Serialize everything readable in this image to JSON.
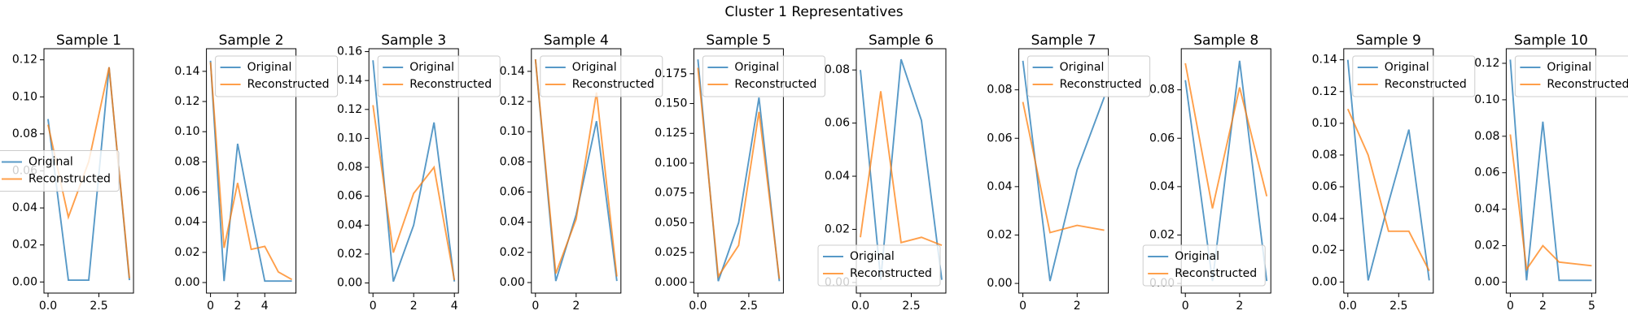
{
  "title": "Cluster 1 Representatives",
  "chart_data": [
    {
      "type": "line",
      "title": "Sample 1",
      "x": [
        0,
        1,
        2,
        3,
        4
      ],
      "xlim": [
        -0.2,
        4.2
      ],
      "xticks": [
        {
          "value": 0,
          "label": "0.0"
        },
        2.5
      ],
      "ylim": [
        -0.006,
        0.126
      ],
      "yticks": [
        {
          "value": 0,
          "label": "0.00"
        },
        0.02,
        0.04,
        0.06,
        0.08,
        {
          "value": 0.1,
          "label": "0.10"
        },
        0.12
      ],
      "legend": "center left",
      "series": [
        {
          "name": "Original",
          "color": "#1f77b4",
          "values": [
            0.088,
            0.001,
            0.001,
            0.116,
            0.001
          ]
        },
        {
          "name": "Reconstructed",
          "color": "#ff7f0e",
          "values": [
            0.085,
            0.035,
            0.065,
            0.116,
            0.002
          ]
        }
      ]
    },
    {
      "type": "line",
      "title": "Sample 2",
      "x": [
        0,
        1,
        2,
        3,
        4,
        5,
        6
      ],
      "xlim": [
        -0.3,
        6.3
      ],
      "xticks": [
        0,
        2,
        4
      ],
      "ylim": [
        -0.007,
        0.155
      ],
      "yticks": [
        {
          "value": 0,
          "label": "0.00"
        },
        0.02,
        0.04,
        0.06,
        0.08,
        {
          "value": 0.1,
          "label": "0.10"
        },
        0.12,
        0.14
      ],
      "legend": "upper right",
      "series": [
        {
          "name": "Original",
          "color": "#1f77b4",
          "values": [
            0.147,
            0.001,
            0.092,
            0.045,
            0.001,
            0.001,
            0.001
          ]
        },
        {
          "name": "Reconstructed",
          "color": "#ff7f0e",
          "values": [
            0.146,
            0.023,
            0.066,
            0.022,
            0.024,
            0.007,
            0.002
          ]
        }
      ]
    },
    {
      "type": "line",
      "title": "Sample 3",
      "x": [
        0,
        1,
        2,
        3,
        4
      ],
      "xlim": [
        -0.2,
        4.2
      ],
      "xticks": [
        0,
        2,
        4
      ],
      "ylim": [
        -0.007,
        0.162
      ],
      "yticks": [
        {
          "value": 0,
          "label": "0.00"
        },
        0.02,
        0.04,
        0.06,
        0.08,
        {
          "value": 0.1,
          "label": "0.10"
        },
        0.12,
        0.14,
        0.16
      ],
      "legend": "upper right",
      "series": [
        {
          "name": "Original",
          "color": "#1f77b4",
          "values": [
            0.154,
            0.001,
            0.04,
            0.111,
            0.001
          ]
        },
        {
          "name": "Reconstructed",
          "color": "#ff7f0e",
          "values": [
            0.123,
            0.021,
            0.062,
            0.08,
            0.002
          ]
        }
      ]
    },
    {
      "type": "line",
      "title": "Sample 4",
      "x": [
        0,
        1,
        2,
        3,
        4
      ],
      "xlim": [
        -0.2,
        4.2
      ],
      "xticks": [
        0,
        2
      ],
      "ylim": [
        -0.007,
        0.155
      ],
      "yticks": [
        {
          "value": 0,
          "label": "0.00"
        },
        0.02,
        0.04,
        0.06,
        0.08,
        {
          "value": 0.1,
          "label": "0.10"
        },
        0.12,
        0.14
      ],
      "legend": "upper right",
      "series": [
        {
          "name": "Original",
          "color": "#1f77b4",
          "values": [
            0.148,
            0.001,
            0.045,
            0.107,
            0.001
          ]
        },
        {
          "name": "Reconstructed",
          "color": "#ff7f0e",
          "values": [
            0.148,
            0.006,
            0.042,
            0.126,
            0.004
          ]
        }
      ]
    },
    {
      "type": "line",
      "title": "Sample 5",
      "x": [
        0,
        1,
        2,
        3,
        4
      ],
      "xlim": [
        -0.2,
        4.2
      ],
      "xticks": [
        {
          "value": 0,
          "label": "0.0"
        },
        2.5
      ],
      "ylim": [
        -0.009,
        0.196
      ],
      "yticks": [
        {
          "value": 0,
          "label": "0.000"
        },
        0.025,
        {
          "value": 0.05,
          "label": "0.050"
        },
        0.075,
        {
          "value": 0.1,
          "label": "0.100"
        },
        0.125,
        {
          "value": 0.15,
          "label": "0.150"
        },
        0.175
      ],
      "legend": "upper right",
      "series": [
        {
          "name": "Original",
          "color": "#1f77b4",
          "values": [
            0.187,
            0.001,
            0.05,
            0.155,
            0.001
          ]
        },
        {
          "name": "Reconstructed",
          "color": "#ff7f0e",
          "values": [
            0.18,
            0.005,
            0.031,
            0.143,
            0.003
          ]
        }
      ]
    },
    {
      "type": "line",
      "title": "Sample 6",
      "x": [
        0,
        1,
        2,
        3,
        4
      ],
      "xlim": [
        -0.2,
        4.2
      ],
      "xticks": [
        {
          "value": 0,
          "label": "0.0"
        },
        2.5
      ],
      "ylim": [
        -0.004,
        0.088
      ],
      "yticks": [
        {
          "value": 0,
          "label": "0.00"
        },
        0.02,
        0.04,
        0.06,
        0.08
      ],
      "legend": "lower left",
      "series": [
        {
          "name": "Original",
          "color": "#1f77b4",
          "values": [
            0.08,
            0.001,
            0.084,
            0.061,
            0.001
          ]
        },
        {
          "name": "Reconstructed",
          "color": "#ff7f0e",
          "values": [
            0.017,
            0.072,
            0.015,
            0.017,
            0.014
          ]
        }
      ]
    },
    {
      "type": "line",
      "title": "Sample 7",
      "x": [
        0,
        1,
        2,
        3
      ],
      "xlim": [
        -0.15,
        3.15
      ],
      "xticks": [
        0,
        2
      ],
      "ylim": [
        -0.004,
        0.097
      ],
      "yticks": [
        {
          "value": 0,
          "label": "0.00"
        },
        0.02,
        0.04,
        0.06,
        0.08
      ],
      "legend": "upper right",
      "series": [
        {
          "name": "Original",
          "color": "#1f77b4",
          "values": [
            0.092,
            0.001,
            0.047,
            0.077
          ]
        },
        {
          "name": "Reconstructed",
          "color": "#ff7f0e",
          "values": [
            0.075,
            0.021,
            0.024,
            0.022
          ]
        }
      ]
    },
    {
      "type": "line",
      "title": "Sample 8",
      "x": [
        0,
        1,
        2,
        3
      ],
      "xlim": [
        -0.15,
        3.15
      ],
      "xticks": [
        0,
        2
      ],
      "ylim": [
        -0.004,
        0.097
      ],
      "yticks": [
        {
          "value": 0,
          "label": "0.00"
        },
        0.02,
        0.04,
        0.06,
        0.08
      ],
      "legend": "lower left",
      "series": [
        {
          "name": "Original",
          "color": "#1f77b4",
          "values": [
            0.084,
            0.001,
            0.092,
            0.001
          ]
        },
        {
          "name": "Reconstructed",
          "color": "#ff7f0e",
          "values": [
            0.091,
            0.031,
            0.081,
            0.036
          ]
        }
      ]
    },
    {
      "type": "line",
      "title": "Sample 9",
      "x": [
        0,
        1,
        2,
        3,
        4
      ],
      "xlim": [
        -0.2,
        4.2
      ],
      "xticks": [
        {
          "value": 0,
          "label": "0.0"
        },
        2.5
      ],
      "ylim": [
        -0.007,
        0.147
      ],
      "yticks": [
        {
          "value": 0,
          "label": "0.00"
        },
        0.02,
        0.04,
        0.06,
        0.08,
        {
          "value": 0.1,
          "label": "0.10"
        },
        0.12,
        0.14
      ],
      "legend": "upper right",
      "series": [
        {
          "name": "Original",
          "color": "#1f77b4",
          "values": [
            0.14,
            0.001,
            0.05,
            0.096,
            0.001
          ]
        },
        {
          "name": "Reconstructed",
          "color": "#ff7f0e",
          "values": [
            0.109,
            0.08,
            0.032,
            0.032,
            0.007
          ]
        }
      ]
    },
    {
      "type": "line",
      "title": "Sample 10",
      "x": [
        0,
        1,
        2,
        3,
        4,
        5
      ],
      "xlim": [
        -0.25,
        5.25
      ],
      "xticks": [
        0,
        2,
        5
      ],
      "ylim": [
        -0.006,
        0.128
      ],
      "yticks": [
        {
          "value": 0,
          "label": "0.00"
        },
        0.02,
        0.04,
        0.06,
        0.08,
        {
          "value": 0.1,
          "label": "0.10"
        },
        0.12
      ],
      "legend": "upper right",
      "series": [
        {
          "name": "Original",
          "color": "#1f77b4",
          "values": [
            0.122,
            0.001,
            0.088,
            0.001,
            0.001,
            0.001
          ]
        },
        {
          "name": "Reconstructed",
          "color": "#ff7f0e",
          "values": [
            0.081,
            0.007,
            0.02,
            0.011,
            0.01,
            0.009
          ]
        }
      ]
    }
  ]
}
